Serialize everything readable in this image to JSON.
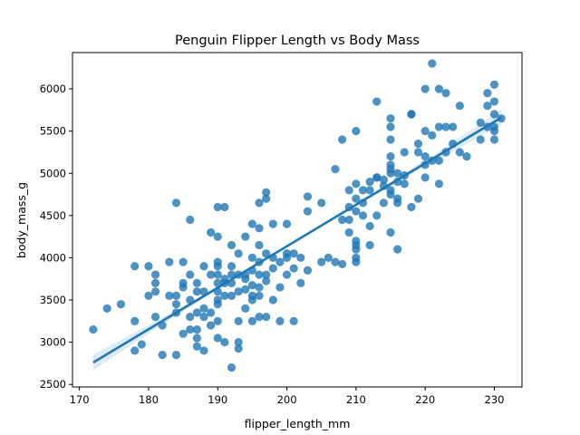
{
  "chart_data": {
    "type": "scatter",
    "title": "Penguin Flipper Length vs Body Mass",
    "xlabel": "flipper_length_mm",
    "ylabel": "body_mass_g",
    "xlim": [
      169,
      234
    ],
    "ylim": [
      2470,
      6430
    ],
    "xticks": [
      170,
      180,
      190,
      200,
      210,
      220,
      230
    ],
    "yticks": [
      2500,
      3000,
      3500,
      4000,
      4500,
      5000,
      5500,
      6000
    ],
    "grid": false,
    "legend": null,
    "marker_color": "#1f77b4",
    "regression": {
      "shown": true,
      "color": "#1f77b4",
      "x_range": [
        172,
        231
      ],
      "y_range": [
        2760,
        5660
      ],
      "ci_band": true
    },
    "points": [
      [
        172,
        3150
      ],
      [
        174,
        3400
      ],
      [
        176,
        3450
      ],
      [
        178,
        3250
      ],
      [
        178,
        3900
      ],
      [
        178,
        2900
      ],
      [
        179,
        2975
      ],
      [
        180,
        3900
      ],
      [
        180,
        3550
      ],
      [
        181,
        3700
      ],
      [
        181,
        3600
      ],
      [
        181,
        3300
      ],
      [
        181,
        3800
      ],
      [
        182,
        3200
      ],
      [
        182,
        2850
      ],
      [
        183,
        3950
      ],
      [
        183,
        3550
      ],
      [
        184,
        3550
      ],
      [
        184,
        3450
      ],
      [
        184,
        3350
      ],
      [
        184,
        4650
      ],
      [
        184,
        2850
      ],
      [
        185,
        3950
      ],
      [
        185,
        3650
      ],
      [
        185,
        3700
      ],
      [
        185,
        3100
      ],
      [
        186,
        3500
      ],
      [
        186,
        3800
      ],
      [
        186,
        4450
      ],
      [
        186,
        3300
      ],
      [
        186,
        3150
      ],
      [
        187,
        3350
      ],
      [
        187,
        3150
      ],
      [
        187,
        3700
      ],
      [
        187,
        2950
      ],
      [
        187,
        3050
      ],
      [
        187,
        3600
      ],
      [
        188,
        3300
      ],
      [
        188,
        3900
      ],
      [
        188,
        3400
      ],
      [
        188,
        3600
      ],
      [
        188,
        2900
      ],
      [
        189,
        4300
      ],
      [
        189,
        3350
      ],
      [
        189,
        3200
      ],
      [
        189,
        3800
      ],
      [
        190,
        3950
      ],
      [
        190,
        3250
      ],
      [
        190,
        3500
      ],
      [
        190,
        3900
      ],
      [
        190,
        3450
      ],
      [
        190,
        3700
      ],
      [
        190,
        3600
      ],
      [
        190,
        4600
      ],
      [
        190,
        4250
      ],
      [
        190,
        3050
      ],
      [
        190,
        3800
      ],
      [
        191,
        3550
      ],
      [
        191,
        3700
      ],
      [
        191,
        3000
      ],
      [
        191,
        3750
      ],
      [
        191,
        4600
      ],
      [
        192,
        4150
      ],
      [
        192,
        3700
      ],
      [
        192,
        3800
      ],
      [
        192,
        3900
      ],
      [
        192,
        3550
      ],
      [
        192,
        2700
      ],
      [
        193,
        3800
      ],
      [
        193,
        4050
      ],
      [
        193,
        3600
      ],
      [
        193,
        3000
      ],
      [
        193,
        3250
      ],
      [
        193,
        2925
      ],
      [
        194,
        3750
      ],
      [
        194,
        3800
      ],
      [
        194,
        3625
      ],
      [
        194,
        4250
      ],
      [
        194,
        3400
      ],
      [
        195,
        4000
      ],
      [
        195,
        3850
      ],
      [
        195,
        3675
      ],
      [
        195,
        3500
      ],
      [
        195,
        4400
      ],
      [
        195,
        3250
      ],
      [
        195,
        3550
      ],
      [
        196,
        4350
      ],
      [
        196,
        4150
      ],
      [
        196,
        3300
      ],
      [
        196,
        3650
      ],
      [
        196,
        3800
      ],
      [
        196,
        3950
      ],
      [
        196,
        3550
      ],
      [
        196,
        4650
      ],
      [
        197,
        3725
      ],
      [
        197,
        4050
      ],
      [
        197,
        4700
      ],
      [
        197,
        4775
      ],
      [
        197,
        3300
      ],
      [
        197,
        3800
      ],
      [
        198,
        4000
      ],
      [
        198,
        3500
      ],
      [
        198,
        4400
      ],
      [
        198,
        3875
      ],
      [
        199,
        3950
      ],
      [
        199,
        3250
      ],
      [
        199,
        3650
      ],
      [
        200,
        4050
      ],
      [
        200,
        3800
      ],
      [
        200,
        4000
      ],
      [
        200,
        4400
      ],
      [
        201,
        3875
      ],
      [
        201,
        4050
      ],
      [
        201,
        3250
      ],
      [
        202,
        3700
      ],
      [
        202,
        4000
      ],
      [
        203,
        3850
      ],
      [
        203,
        4725
      ],
      [
        203,
        4550
      ],
      [
        205,
        4650
      ],
      [
        205,
        3950
      ],
      [
        206,
        4000
      ],
      [
        207,
        5050
      ],
      [
        207,
        3950
      ],
      [
        208,
        4450
      ],
      [
        208,
        5400
      ],
      [
        208,
        3925
      ],
      [
        209,
        4800
      ],
      [
        209,
        4300
      ],
      [
        209,
        4600
      ],
      [
        209,
        4450
      ],
      [
        210,
        4700
      ],
      [
        210,
        4150
      ],
      [
        210,
        4550
      ],
      [
        210,
        5500
      ],
      [
        210,
        4875
      ],
      [
        210,
        3950
      ],
      [
        210,
        4000
      ],
      [
        210,
        4100
      ],
      [
        210,
        4200
      ],
      [
        211,
        4800
      ],
      [
        211,
        4500
      ],
      [
        211,
        4650
      ],
      [
        212,
        4900
      ],
      [
        212,
        4800
      ],
      [
        212,
        4375
      ],
      [
        212,
        4150
      ],
      [
        213,
        4950
      ],
      [
        213,
        4950
      ],
      [
        213,
        4500
      ],
      [
        213,
        5850
      ],
      [
        214,
        4650
      ],
      [
        214,
        4850
      ],
      [
        214,
        4925
      ],
      [
        215,
        5000
      ],
      [
        215,
        5100
      ],
      [
        215,
        5550
      ],
      [
        215,
        5400
      ],
      [
        215,
        5050
      ],
      [
        215,
        4800
      ],
      [
        215,
        4750
      ],
      [
        215,
        5650
      ],
      [
        215,
        4300
      ],
      [
        215,
        5200
      ],
      [
        216,
        4900
      ],
      [
        216,
        5000
      ],
      [
        216,
        4650
      ],
      [
        216,
        4700
      ],
      [
        216,
        4100
      ],
      [
        217,
        4975
      ],
      [
        217,
        5250
      ],
      [
        217,
        4875
      ],
      [
        218,
        5700
      ],
      [
        218,
        5700
      ],
      [
        218,
        4600
      ],
      [
        219,
        5250
      ],
      [
        219,
        4700
      ],
      [
        219,
        5350
      ],
      [
        220,
        5100
      ],
      [
        220,
        6000
      ],
      [
        220,
        5200
      ],
      [
        220,
        4950
      ],
      [
        220,
        5500
      ],
      [
        221,
        6300
      ],
      [
        221,
        5450
      ],
      [
        221,
        5150
      ],
      [
        222,
        5550
      ],
      [
        222,
        6000
      ],
      [
        222,
        5150
      ],
      [
        222,
        4875
      ],
      [
        223,
        5950
      ],
      [
        223,
        5550
      ],
      [
        223,
        5250
      ],
      [
        224,
        5550
      ],
      [
        224,
        5350
      ],
      [
        225,
        5250
      ],
      [
        225,
        5800
      ],
      [
        226,
        5200
      ],
      [
        228,
        5600
      ],
      [
        228,
        5400
      ],
      [
        229,
        5950
      ],
      [
        229,
        5550
      ],
      [
        229,
        5800
      ],
      [
        230,
        6050
      ],
      [
        230,
        5500
      ],
      [
        230,
        5700
      ],
      [
        230,
        5850
      ],
      [
        230,
        5550
      ],
      [
        230,
        5400
      ],
      [
        231,
        5650
      ]
    ]
  }
}
